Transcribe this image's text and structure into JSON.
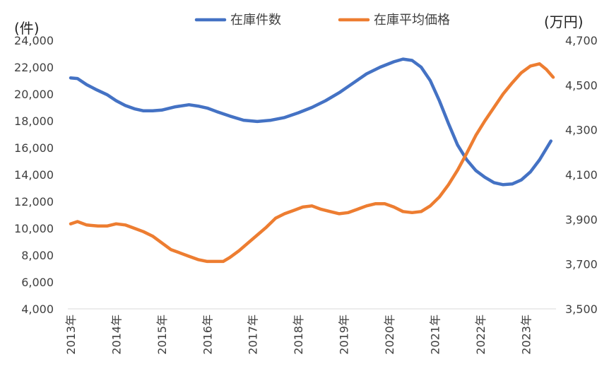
{
  "chart_data": {
    "type": "line",
    "x": [
      "2013年",
      "2014年",
      "2015年",
      "2016年",
      "2017年",
      "2018年",
      "2019年",
      "2020年",
      "2021年",
      "2022年",
      "2023年"
    ],
    "left_axis": {
      "unit": "(件)",
      "ylim": [
        4000,
        24000
      ],
      "ticks": [
        "4,000",
        "6,000",
        "8,000",
        "10,000",
        "12,000",
        "14,000",
        "16,000",
        "18,000",
        "20,000",
        "22,000",
        "24,000"
      ]
    },
    "right_axis": {
      "unit": "(万円)",
      "ylim": [
        3500,
        4700
      ],
      "ticks": [
        "3,500",
        "3,700",
        "3,900",
        "4,100",
        "4,300",
        "4,500",
        "4,700"
      ]
    },
    "series": [
      {
        "name": "在庫件数",
        "axis": "left",
        "color": "#4472C4",
        "points": [
          [
            0,
            21200
          ],
          [
            0.15,
            21150
          ],
          [
            0.35,
            20700
          ],
          [
            0.55,
            20350
          ],
          [
            0.8,
            19950
          ],
          [
            1.0,
            19500
          ],
          [
            1.2,
            19150
          ],
          [
            1.4,
            18900
          ],
          [
            1.6,
            18750
          ],
          [
            1.8,
            18750
          ],
          [
            2.0,
            18800
          ],
          [
            2.3,
            19050
          ],
          [
            2.6,
            19200
          ],
          [
            2.8,
            19100
          ],
          [
            3.0,
            18950
          ],
          [
            3.2,
            18700
          ],
          [
            3.5,
            18350
          ],
          [
            3.8,
            18050
          ],
          [
            4.1,
            17950
          ],
          [
            4.4,
            18050
          ],
          [
            4.7,
            18250
          ],
          [
            5.0,
            18600
          ],
          [
            5.3,
            19000
          ],
          [
            5.6,
            19500
          ],
          [
            5.9,
            20100
          ],
          [
            6.2,
            20800
          ],
          [
            6.5,
            21500
          ],
          [
            6.8,
            22000
          ],
          [
            7.1,
            22400
          ],
          [
            7.3,
            22600
          ],
          [
            7.5,
            22500
          ],
          [
            7.7,
            22000
          ],
          [
            7.9,
            21000
          ],
          [
            8.1,
            19500
          ],
          [
            8.3,
            17800
          ],
          [
            8.5,
            16200
          ],
          [
            8.7,
            15100
          ],
          [
            8.9,
            14300
          ],
          [
            9.1,
            13800
          ],
          [
            9.3,
            13400
          ],
          [
            9.5,
            13250
          ],
          [
            9.7,
            13300
          ],
          [
            9.9,
            13600
          ],
          [
            10.1,
            14200
          ],
          [
            10.3,
            15100
          ],
          [
            10.55,
            16500
          ]
        ]
      },
      {
        "name": "在庫平均価格",
        "axis": "right",
        "color": "#ED7D31",
        "points": [
          [
            0,
            3880
          ],
          [
            0.15,
            3890
          ],
          [
            0.35,
            3875
          ],
          [
            0.6,
            3870
          ],
          [
            0.8,
            3870
          ],
          [
            1.0,
            3880
          ],
          [
            1.2,
            3875
          ],
          [
            1.4,
            3860
          ],
          [
            1.6,
            3845
          ],
          [
            1.8,
            3825
          ],
          [
            2.0,
            3795
          ],
          [
            2.2,
            3765
          ],
          [
            2.4,
            3750
          ],
          [
            2.6,
            3735
          ],
          [
            2.8,
            3720
          ],
          [
            3.0,
            3712
          ],
          [
            3.2,
            3712
          ],
          [
            3.35,
            3712
          ],
          [
            3.5,
            3730
          ],
          [
            3.7,
            3760
          ],
          [
            3.9,
            3795
          ],
          [
            4.1,
            3830
          ],
          [
            4.3,
            3865
          ],
          [
            4.5,
            3905
          ],
          [
            4.7,
            3925
          ],
          [
            4.9,
            3940
          ],
          [
            5.1,
            3955
          ],
          [
            5.3,
            3960
          ],
          [
            5.5,
            3945
          ],
          [
            5.7,
            3935
          ],
          [
            5.9,
            3925
          ],
          [
            6.1,
            3930
          ],
          [
            6.3,
            3945
          ],
          [
            6.5,
            3960
          ],
          [
            6.7,
            3970
          ],
          [
            6.9,
            3970
          ],
          [
            7.1,
            3955
          ],
          [
            7.3,
            3935
          ],
          [
            7.5,
            3930
          ],
          [
            7.7,
            3935
          ],
          [
            7.9,
            3960
          ],
          [
            8.1,
            4000
          ],
          [
            8.3,
            4055
          ],
          [
            8.5,
            4120
          ],
          [
            8.7,
            4195
          ],
          [
            8.9,
            4275
          ],
          [
            9.1,
            4340
          ],
          [
            9.3,
            4400
          ],
          [
            9.5,
            4460
          ],
          [
            9.7,
            4510
          ],
          [
            9.9,
            4555
          ],
          [
            10.1,
            4585
          ],
          [
            10.3,
            4595
          ],
          [
            10.45,
            4570
          ],
          [
            10.6,
            4535
          ]
        ]
      }
    ],
    "legend": {
      "placement": "top"
    },
    "grid": false
  }
}
